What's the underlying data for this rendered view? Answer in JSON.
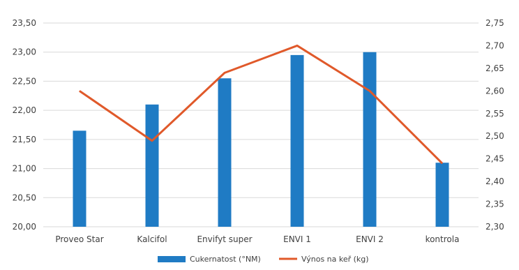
{
  "chart_data": {
    "type": "bar",
    "categories": [
      "Proveo Star",
      "Kalcifol",
      "Envifyt super",
      "ENVI 1",
      "ENVI 2",
      "kontrola"
    ],
    "series": [
      {
        "name": "Cukernatost (°NM)",
        "type": "bar",
        "axis": "left",
        "color": "#1f7bc4",
        "values": [
          21.65,
          22.1,
          22.55,
          22.95,
          23.0,
          21.1
        ]
      },
      {
        "name": "Výnos na keř (kg)",
        "type": "line",
        "axis": "right",
        "color": "#e0592a",
        "values": [
          2.6,
          2.49,
          2.64,
          2.7,
          2.6,
          2.44
        ]
      }
    ],
    "y_left": {
      "lim": [
        20.0,
        23.5
      ],
      "ticks": [
        "20,00",
        "20,50",
        "21,00",
        "21,50",
        "22,00",
        "22,50",
        "23,00",
        "23,50"
      ]
    },
    "y_right": {
      "lim": [
        2.3,
        2.75
      ],
      "ticks": [
        "2,30",
        "2,35",
        "2,40",
        "2,45",
        "2,50",
        "2,55",
        "2,60",
        "2,65",
        "2,70",
        "2,75"
      ]
    },
    "grid": true,
    "legend_position": "bottom"
  }
}
